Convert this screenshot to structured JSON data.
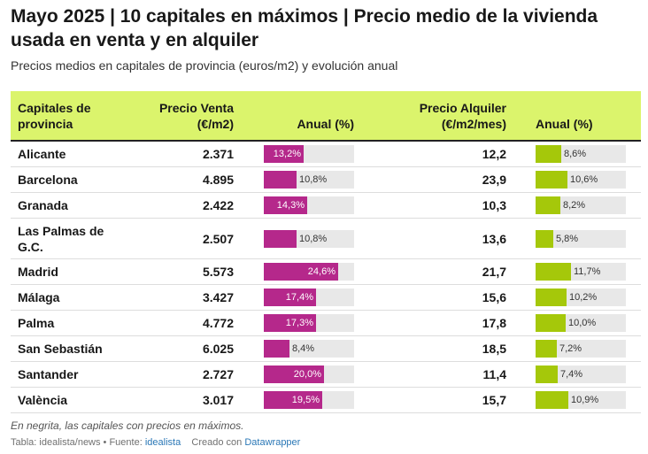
{
  "title": "Mayo 2025 | 10 capitales en máximos | Precio medio de la vivienda usada en venta y en alquiler",
  "subtitle": "Precios medios en capitales de provincia (euros/m2) y evolución anual",
  "headers": {
    "city": [
      "Capitales de",
      "provincia"
    ],
    "sale_price": [
      "Precio Venta",
      "(€/m2)"
    ],
    "sale_change": "Anual (%)",
    "rent_price": [
      "Precio Alquiler",
      "(€/m2/mes)"
    ],
    "rent_change": "Anual (%)"
  },
  "colors": {
    "header_bg": "#dbf46c",
    "sale_bar": "#b5288b",
    "rent_bar": "#a5c80a",
    "track": "#e8e8e8"
  },
  "chart_data": {
    "type": "table",
    "columns": [
      "Capitales de provincia",
      "Precio Venta (€/m2)",
      "Anual (%)",
      "Precio Alquiler (€/m2/mes)",
      "Anual (%)"
    ],
    "bar_scale_max": 30,
    "rows": [
      {
        "city": "Alicante",
        "sale_price": "2.371",
        "sale_change": 13.2,
        "sale_change_label": "13,2%",
        "rent_price": "12,2",
        "rent_change": 8.6,
        "rent_change_label": "8,6%"
      },
      {
        "city": "Barcelona",
        "sale_price": "4.895",
        "sale_change": 10.8,
        "sale_change_label": "10,8%",
        "rent_price": "23,9",
        "rent_change": 10.6,
        "rent_change_label": "10,6%"
      },
      {
        "city": "Granada",
        "sale_price": "2.422",
        "sale_change": 14.3,
        "sale_change_label": "14,3%",
        "rent_price": "10,3",
        "rent_change": 8.2,
        "rent_change_label": "8,2%"
      },
      {
        "city": "Las Palmas de G.C.",
        "sale_price": "2.507",
        "sale_change": 10.8,
        "sale_change_label": "10,8%",
        "rent_price": "13,6",
        "rent_change": 5.8,
        "rent_change_label": "5,8%"
      },
      {
        "city": "Madrid",
        "sale_price": "5.573",
        "sale_change": 24.6,
        "sale_change_label": "24,6%",
        "rent_price": "21,7",
        "rent_change": 11.7,
        "rent_change_label": "11,7%"
      },
      {
        "city": "Málaga",
        "sale_price": "3.427",
        "sale_change": 17.4,
        "sale_change_label": "17,4%",
        "rent_price": "15,6",
        "rent_change": 10.2,
        "rent_change_label": "10,2%"
      },
      {
        "city": "Palma",
        "sale_price": "4.772",
        "sale_change": 17.3,
        "sale_change_label": "17,3%",
        "rent_price": "17,8",
        "rent_change": 10.0,
        "rent_change_label": "10,0%"
      },
      {
        "city": "San Sebastián",
        "sale_price": "6.025",
        "sale_change": 8.4,
        "sale_change_label": "8,4%",
        "rent_price": "18,5",
        "rent_change": 7.2,
        "rent_change_label": "7,2%"
      },
      {
        "city": "Santander",
        "sale_price": "2.727",
        "sale_change": 20.0,
        "sale_change_label": "20,0%",
        "rent_price": "11,4",
        "rent_change": 7.4,
        "rent_change_label": "7,4%"
      },
      {
        "city": "València",
        "sale_price": "3.017",
        "sale_change": 19.5,
        "sale_change_label": "19,5%",
        "rent_price": "15,7",
        "rent_change": 10.9,
        "rent_change_label": "10,9%"
      }
    ]
  },
  "notes": "En negrita, las capitales con precios en máximos.",
  "footer": {
    "prefix": "Tabla: idealista/news • Fuente: ",
    "source_link": "idealista",
    "created_with": "Creado con ",
    "tool_link": "Datawrapper"
  }
}
